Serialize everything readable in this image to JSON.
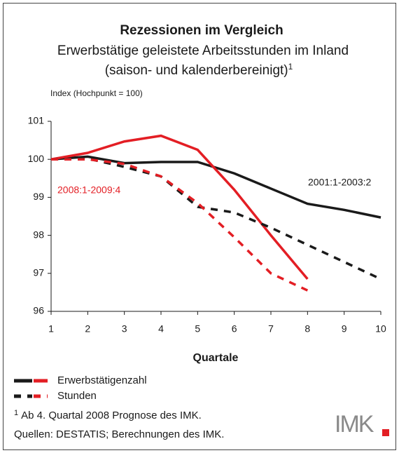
{
  "chart_data": {
    "type": "line",
    "title": "Rezessionen im Vergleich",
    "subtitle": [
      "Erwerbstätige geleistete Arbeitsstunden im Inland",
      "(saison- und kalenderbereinigt)"
    ],
    "subtitle_note": "1",
    "y_label": "Index (Hochpunkt = 100)",
    "x_label": "Quartale",
    "x": [
      1,
      2,
      3,
      4,
      5,
      6,
      7,
      8,
      9,
      10
    ],
    "xlim": [
      1,
      10
    ],
    "xticks": [
      1,
      2,
      3,
      4,
      5,
      6,
      7,
      8,
      9,
      10
    ],
    "ylim": [
      96,
      101
    ],
    "yticks": [
      96,
      97,
      98,
      99,
      100,
      101
    ],
    "grid": false,
    "series": [
      {
        "name": "Erwerbstätigenzahl",
        "dashed": false,
        "lines": [
          {
            "color": "#1a1a1a",
            "values": [
              100.0,
              100.07,
              99.9,
              99.93,
              99.93,
              99.63,
              99.23,
              98.83,
              98.67,
              98.47
            ]
          },
          {
            "color": "#e31e24",
            "values": [
              100.0,
              100.17,
              100.47,
              100.62,
              100.25,
              99.2,
              98.0,
              96.85,
              null,
              null
            ]
          }
        ]
      },
      {
        "name": "Stunden",
        "dashed": true,
        "lines": [
          {
            "color": "#1a1a1a",
            "values": [
              100.0,
              100.02,
              99.8,
              99.55,
              98.75,
              98.6,
              98.2,
              97.75,
              97.3,
              96.85
            ]
          },
          {
            "color": "#e31e24",
            "values": [
              100.0,
              100.0,
              99.88,
              99.55,
              98.85,
              97.95,
              97.0,
              96.55,
              null,
              null
            ]
          }
        ]
      }
    ],
    "annotations": [
      {
        "text": "2001:1-2003:2",
        "color": "#1a1a1a"
      },
      {
        "text": "2008:1-2009:4",
        "color": "#e31e24"
      }
    ],
    "footnote": {
      "marker": "1",
      "text": "Ab 4. Quartal 2008 Prognose des IMK."
    },
    "source": "Quellen: DESTATIS; Berechnungen des IMK.",
    "logo": "IMK"
  }
}
